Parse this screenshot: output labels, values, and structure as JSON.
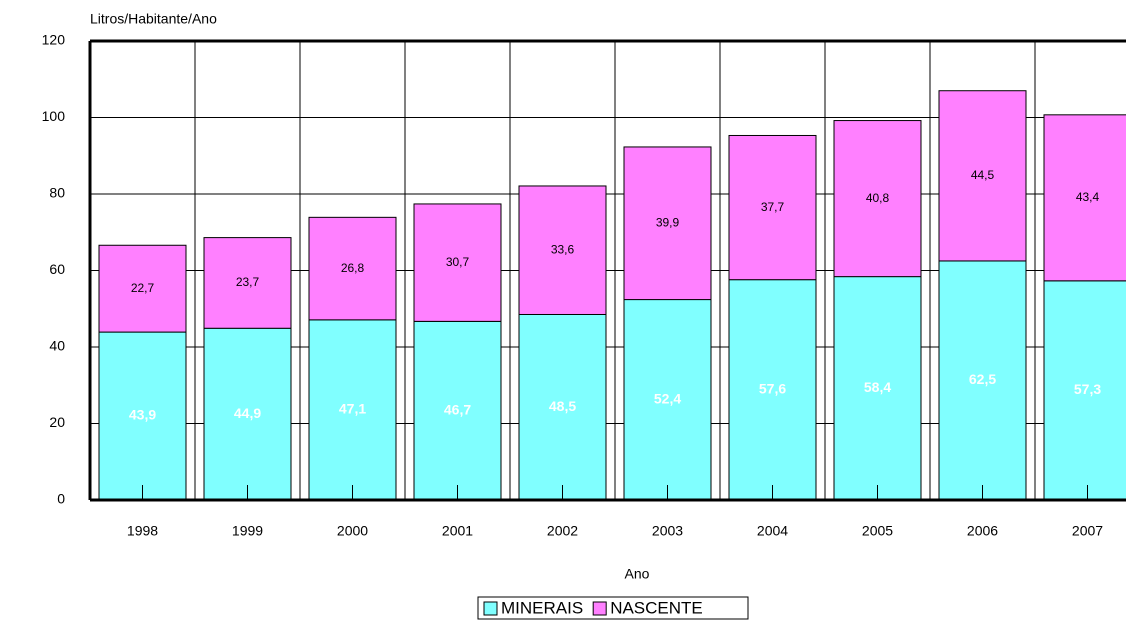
{
  "chart_data": {
    "type": "stacked_bar",
    "y_label": "Litros/Habitante/Ano",
    "x_label": "Ano",
    "categories": [
      "1998",
      "1999",
      "2000",
      "2001",
      "2002",
      "2003",
      "2004",
      "2005",
      "2006",
      "2007"
    ],
    "series": [
      {
        "name": "MINERAIS",
        "color": "#80ffff",
        "values": [
          43.9,
          44.9,
          47.1,
          46.7,
          48.5,
          52.4,
          57.6,
          58.4,
          62.5,
          57.3
        ],
        "value_labels": [
          "43,9",
          "44,9",
          "47,1",
          "46,7",
          "48,5",
          "52,4",
          "57,6",
          "58,4",
          "62,5",
          "57,3"
        ]
      },
      {
        "name": "NASCENTE",
        "color": "#ff80ff",
        "values": [
          22.7,
          23.7,
          26.8,
          30.7,
          33.6,
          39.9,
          37.7,
          40.8,
          44.5,
          43.4
        ],
        "value_labels": [
          "22,7",
          "23,7",
          "26,8",
          "30,7",
          "33,6",
          "39,9",
          "37,7",
          "40,8",
          "44,5",
          "43,4"
        ]
      }
    ],
    "ylim": [
      0,
      120
    ],
    "yticks": [
      0,
      20,
      40,
      60,
      80,
      100,
      120
    ],
    "grid": true,
    "legend": "bottom"
  }
}
